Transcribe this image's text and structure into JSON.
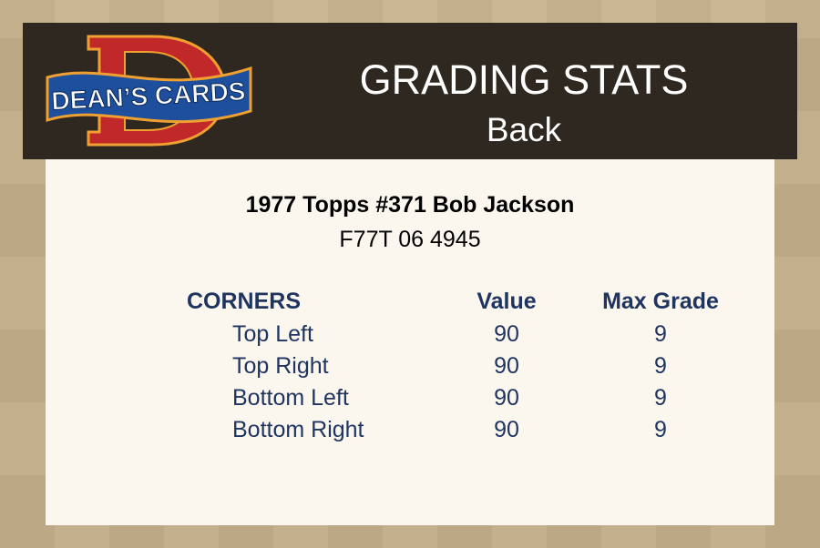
{
  "header": {
    "logo_text": "DEAN'S CARDS",
    "title": "GRADING STATS",
    "subtitle": "Back"
  },
  "card": {
    "name": "1977 Topps #371 Bob Jackson",
    "cert": "F77T 06 4945"
  },
  "table": {
    "headers": [
      "CORNERS",
      "Value",
      "Max Grade"
    ],
    "rows": [
      {
        "label": "Top Left",
        "value": "90",
        "max": "9"
      },
      {
        "label": "Top Right",
        "value": "90",
        "max": "9"
      },
      {
        "label": "Bottom Left",
        "value": "90",
        "max": "9"
      },
      {
        "label": "Bottom Right",
        "value": "90",
        "max": "9"
      }
    ]
  },
  "colors": {
    "header_bg": "#2e2820",
    "panel_bg": "#fcf7ee",
    "text_navy": "#1f3560",
    "logo_red": "#c0282a",
    "logo_blue": "#1d4f9c"
  }
}
